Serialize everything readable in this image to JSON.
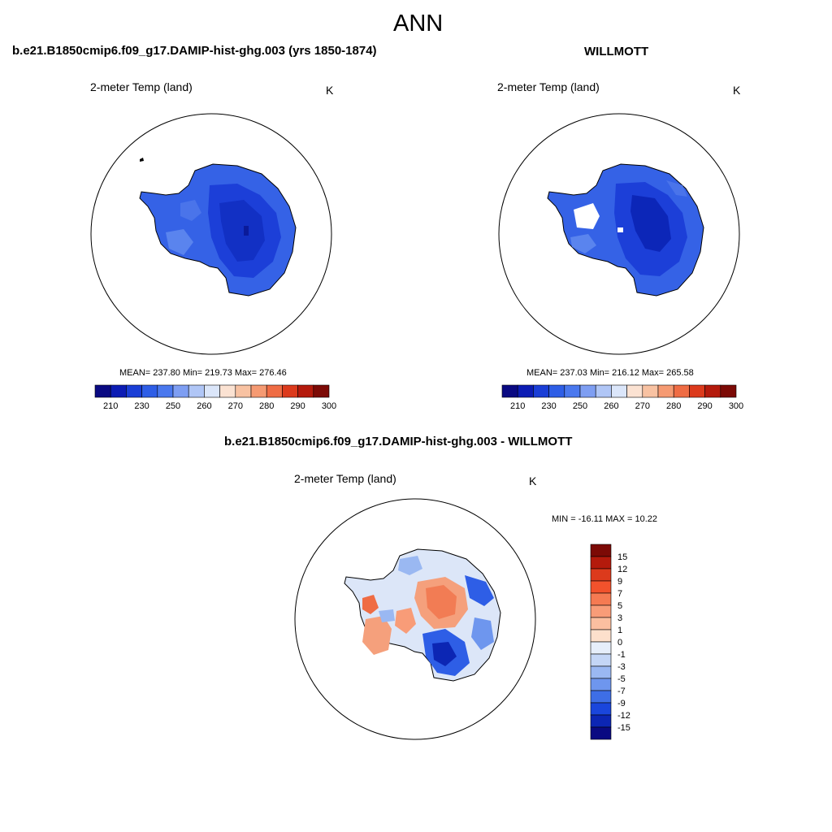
{
  "figure_title": "ANN",
  "panels": [
    {
      "title": "b.e21.B1850cmip6.f09_g17.DAMIP-hist-ghg.003 (yrs 1850-1874)",
      "variable": "2-meter Temp (land)",
      "units": "K",
      "stats": "MEAN= 237.80  Min= 219.73  Max= 276.46",
      "mean": 237.8,
      "min": 219.73,
      "max": 276.46
    },
    {
      "title": "WILLMOTT",
      "variable": "2-meter Temp (land)",
      "units": "K",
      "stats": "MEAN= 237.03  Min= 216.12  Max= 265.58",
      "mean": 237.03,
      "min": 216.12,
      "max": 265.58
    },
    {
      "title": "b.e21.B1850cmip6.f09_g17.DAMIP-hist-ghg.003 - WILLMOTT",
      "variable": "2-meter Temp (land)",
      "units": "K",
      "stats": "MIN = -16.11 MAX =  10.22",
      "min": -16.11,
      "max": 10.22
    }
  ],
  "abs_colorbar": {
    "labels": [
      "210",
      "230",
      "250",
      "260",
      "270",
      "280",
      "290",
      "300"
    ],
    "colors": [
      "#0a0a82",
      "#0c1cb4",
      "#1a3ed6",
      "#2e5ee6",
      "#4a78ee",
      "#7e9ef2",
      "#b0c6f6",
      "#dbe6fa",
      "#fbe2d2",
      "#f8c2a2",
      "#f59a72",
      "#ef6c44",
      "#dc3a1c",
      "#b41a0c",
      "#7c0a06"
    ]
  },
  "diff_colorbar": {
    "labels": [
      "15",
      "12",
      "9",
      "7",
      "5",
      "3",
      "1",
      "0",
      "-1",
      "-3",
      "-5",
      "-7",
      "-9",
      "-12",
      "-15"
    ],
    "colors": [
      "#7c0a06",
      "#b41a0c",
      "#dc3a1c",
      "#f2522c",
      "#f57a52",
      "#f89c78",
      "#fbbfa0",
      "#fde0cc",
      "#e6eefa",
      "#c4d6f6",
      "#9ab8f2",
      "#6e96ee",
      "#3e6ee6",
      "#1a46dc",
      "#0c26b4",
      "#0a0a82"
    ]
  },
  "chart_data": [
    {
      "type": "heatmap",
      "title": "b.e21.B1850cmip6.f09_g17.DAMIP-hist-ghg.003 (yrs 1850-1874)",
      "variable": "2-meter Temp (land)",
      "units": "K",
      "mean": 237.8,
      "min": 219.73,
      "max": 276.46,
      "colorbar_ticks": [
        210,
        230,
        250,
        260,
        270,
        280,
        290,
        300
      ]
    },
    {
      "type": "heatmap",
      "title": "WILLMOTT",
      "variable": "2-meter Temp (land)",
      "units": "K",
      "mean": 237.03,
      "min": 216.12,
      "max": 265.58,
      "colorbar_ticks": [
        210,
        230,
        250,
        260,
        270,
        280,
        290,
        300
      ]
    },
    {
      "type": "heatmap",
      "title": "b.e21.B1850cmip6.f09_g17.DAMIP-hist-ghg.003 - WILLMOTT",
      "variable": "2-meter Temp (land)",
      "units": "K",
      "min": -16.11,
      "max": 10.22,
      "colorbar_ticks": [
        15,
        12,
        9,
        7,
        5,
        3,
        1,
        0,
        -1,
        -3,
        -5,
        -7,
        -9,
        -12,
        -15
      ]
    }
  ]
}
